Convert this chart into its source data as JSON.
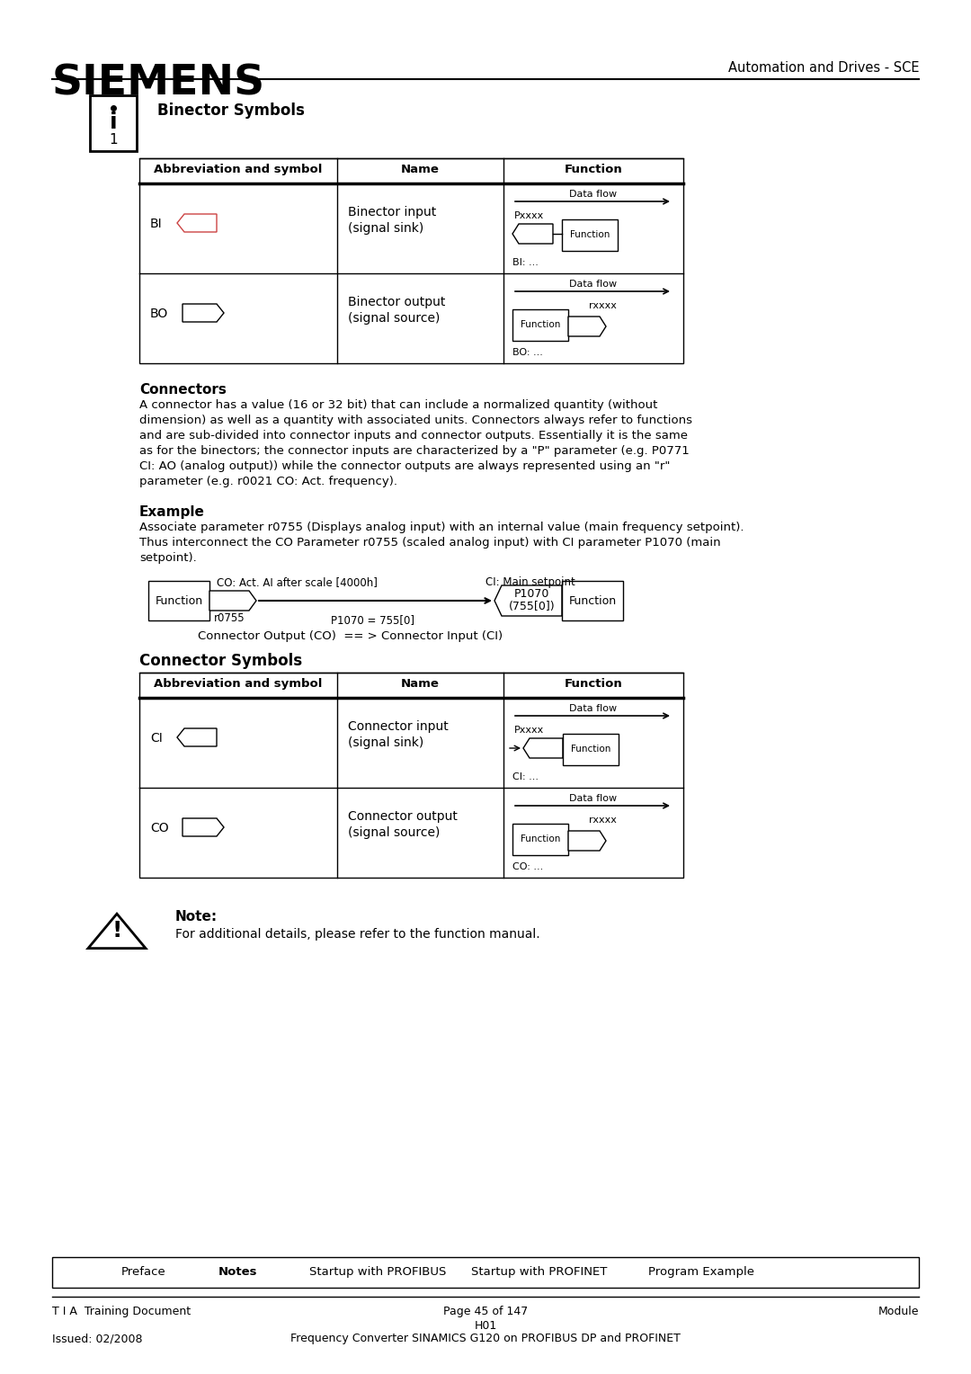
{
  "page_title": "SIEMENS",
  "page_subtitle": "Automation and Drives - SCE",
  "section1_title": "Binector Symbols",
  "binector_table_headers": [
    "Abbreviation and symbol",
    "Name",
    "Function"
  ],
  "connectors_heading": "Connectors",
  "connectors_text": "A connector has a value (16 or 32 bit) that can include a normalized quantity (without\ndimension) as well as a quantity with associated units. Connectors always refer to functions\nand are sub-divided into connector inputs and connector outputs. Essentially it is the same\nas for the binectors; the connector inputs are characterized by a \"P\" parameter (e.g. P0771\nCI: AO (analog output)) while the connector outputs are always represented using an \"r\"\nparameter (e.g. r0021 CO: Act. frequency).",
  "example_heading": "Example",
  "example_text": "Associate parameter r0755 (Displays analog input) with an internal value (main frequency setpoint).\nThus interconnect the CO Parameter r0755 (scaled analog input) with CI parameter P1070 (main\nsetpoint).",
  "example_co_label": "CO: Act. AI after scale [4000h]",
  "example_r0755": "r0755",
  "example_p1070_label": "P1070 = 755[0]",
  "example_ci_label": "CI: Main setpoint",
  "example_caption": "Connector Output (CO)  == > Connector Input (CI)",
  "section2_title": "Connector Symbols",
  "connector_table_headers": [
    "Abbreviation and symbol",
    "Name",
    "Function"
  ],
  "note_heading": "Note:",
  "note_text": "For additional details, please refer to the function manual.",
  "footer_nav": [
    "Preface",
    "Notes",
    "Startup with PROFIBUS",
    "Startup with PROFINET",
    "Program Example"
  ],
  "footer_nav_bold": "Notes",
  "footer_left1": "T I A  Training Document",
  "footer_center1": "Page 45 of 147",
  "footer_center2": "H01",
  "footer_right1": "Module",
  "footer_left2": "Issued: 02/2008",
  "footer_center3": "Frequency Converter SINAMICS G120 on PROFIBUS DP and PROFINET",
  "bg_color": "#ffffff"
}
